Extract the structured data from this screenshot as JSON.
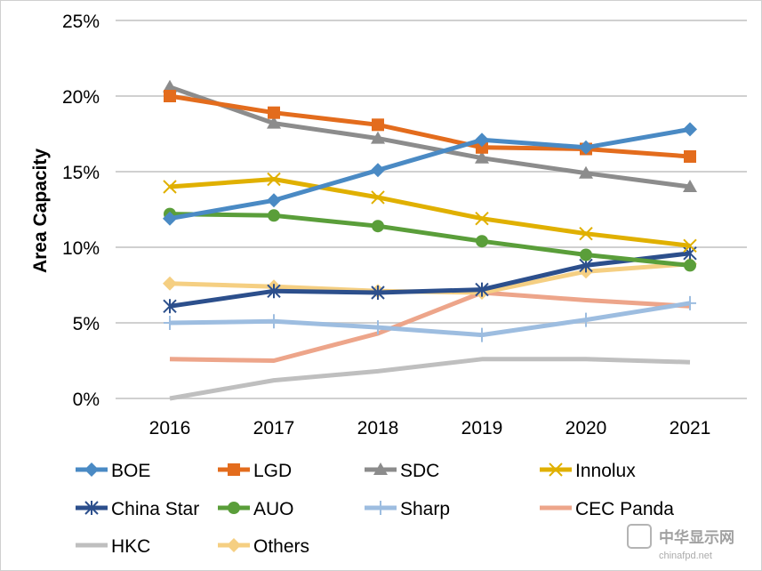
{
  "chart_data": {
    "type": "line",
    "title": "",
    "xlabel": "",
    "ylabel": "Area Capacity",
    "x": [
      "2016",
      "2017",
      "2018",
      "2019",
      "2020",
      "2021"
    ],
    "ylim": [
      0,
      25
    ],
    "yticks": [
      "0%",
      "5%",
      "10%",
      "15%",
      "20%",
      "25%"
    ],
    "ytick_values": [
      0,
      5,
      10,
      15,
      20,
      25
    ],
    "grid": true,
    "legend_placement": "bottom",
    "series": [
      {
        "name": "BOE",
        "color": "#4a8ac4",
        "marker": "diamond",
        "values": [
          11.9,
          13.1,
          15.1,
          17.1,
          16.6,
          17.8
        ]
      },
      {
        "name": "LGD",
        "color": "#e36c1d",
        "marker": "square",
        "values": [
          20.0,
          18.9,
          18.1,
          16.6,
          16.5,
          16.0
        ]
      },
      {
        "name": "SDC",
        "color": "#8c8c8c",
        "marker": "triangle",
        "values": [
          20.6,
          18.2,
          17.2,
          15.9,
          14.9,
          14.0
        ]
      },
      {
        "name": "Innolux",
        "color": "#e0b000",
        "marker": "x",
        "values": [
          14.0,
          14.5,
          13.3,
          11.9,
          10.9,
          10.1
        ]
      },
      {
        "name": "China Star",
        "color": "#2c4f8c",
        "marker": "star",
        "values": [
          6.1,
          7.1,
          7.0,
          7.2,
          8.8,
          9.6
        ]
      },
      {
        "name": "AUO",
        "color": "#5a9e3a",
        "marker": "circle",
        "values": [
          12.2,
          12.1,
          11.4,
          10.4,
          9.5,
          8.8
        ]
      },
      {
        "name": "Sharp",
        "color": "#9dbde0",
        "marker": "plus",
        "values": [
          5.0,
          5.1,
          4.7,
          4.2,
          5.2,
          6.3
        ]
      },
      {
        "name": "CEC Panda",
        "color": "#eda58a",
        "marker": "none",
        "values": [
          2.6,
          2.5,
          4.3,
          7.0,
          6.5,
          6.1
        ]
      },
      {
        "name": "HKC",
        "color": "#bfbfbf",
        "marker": "none",
        "values": [
          0.0,
          1.2,
          1.8,
          2.6,
          2.6,
          2.4
        ]
      },
      {
        "name": "Others",
        "color": "#f5cf82",
        "marker": "diamond",
        "values": [
          7.6,
          7.4,
          7.1,
          7.0,
          8.4,
          8.9
        ]
      }
    ]
  },
  "watermark": {
    "logo_text": "中华显示网",
    "url": "chinafpd.net"
  }
}
